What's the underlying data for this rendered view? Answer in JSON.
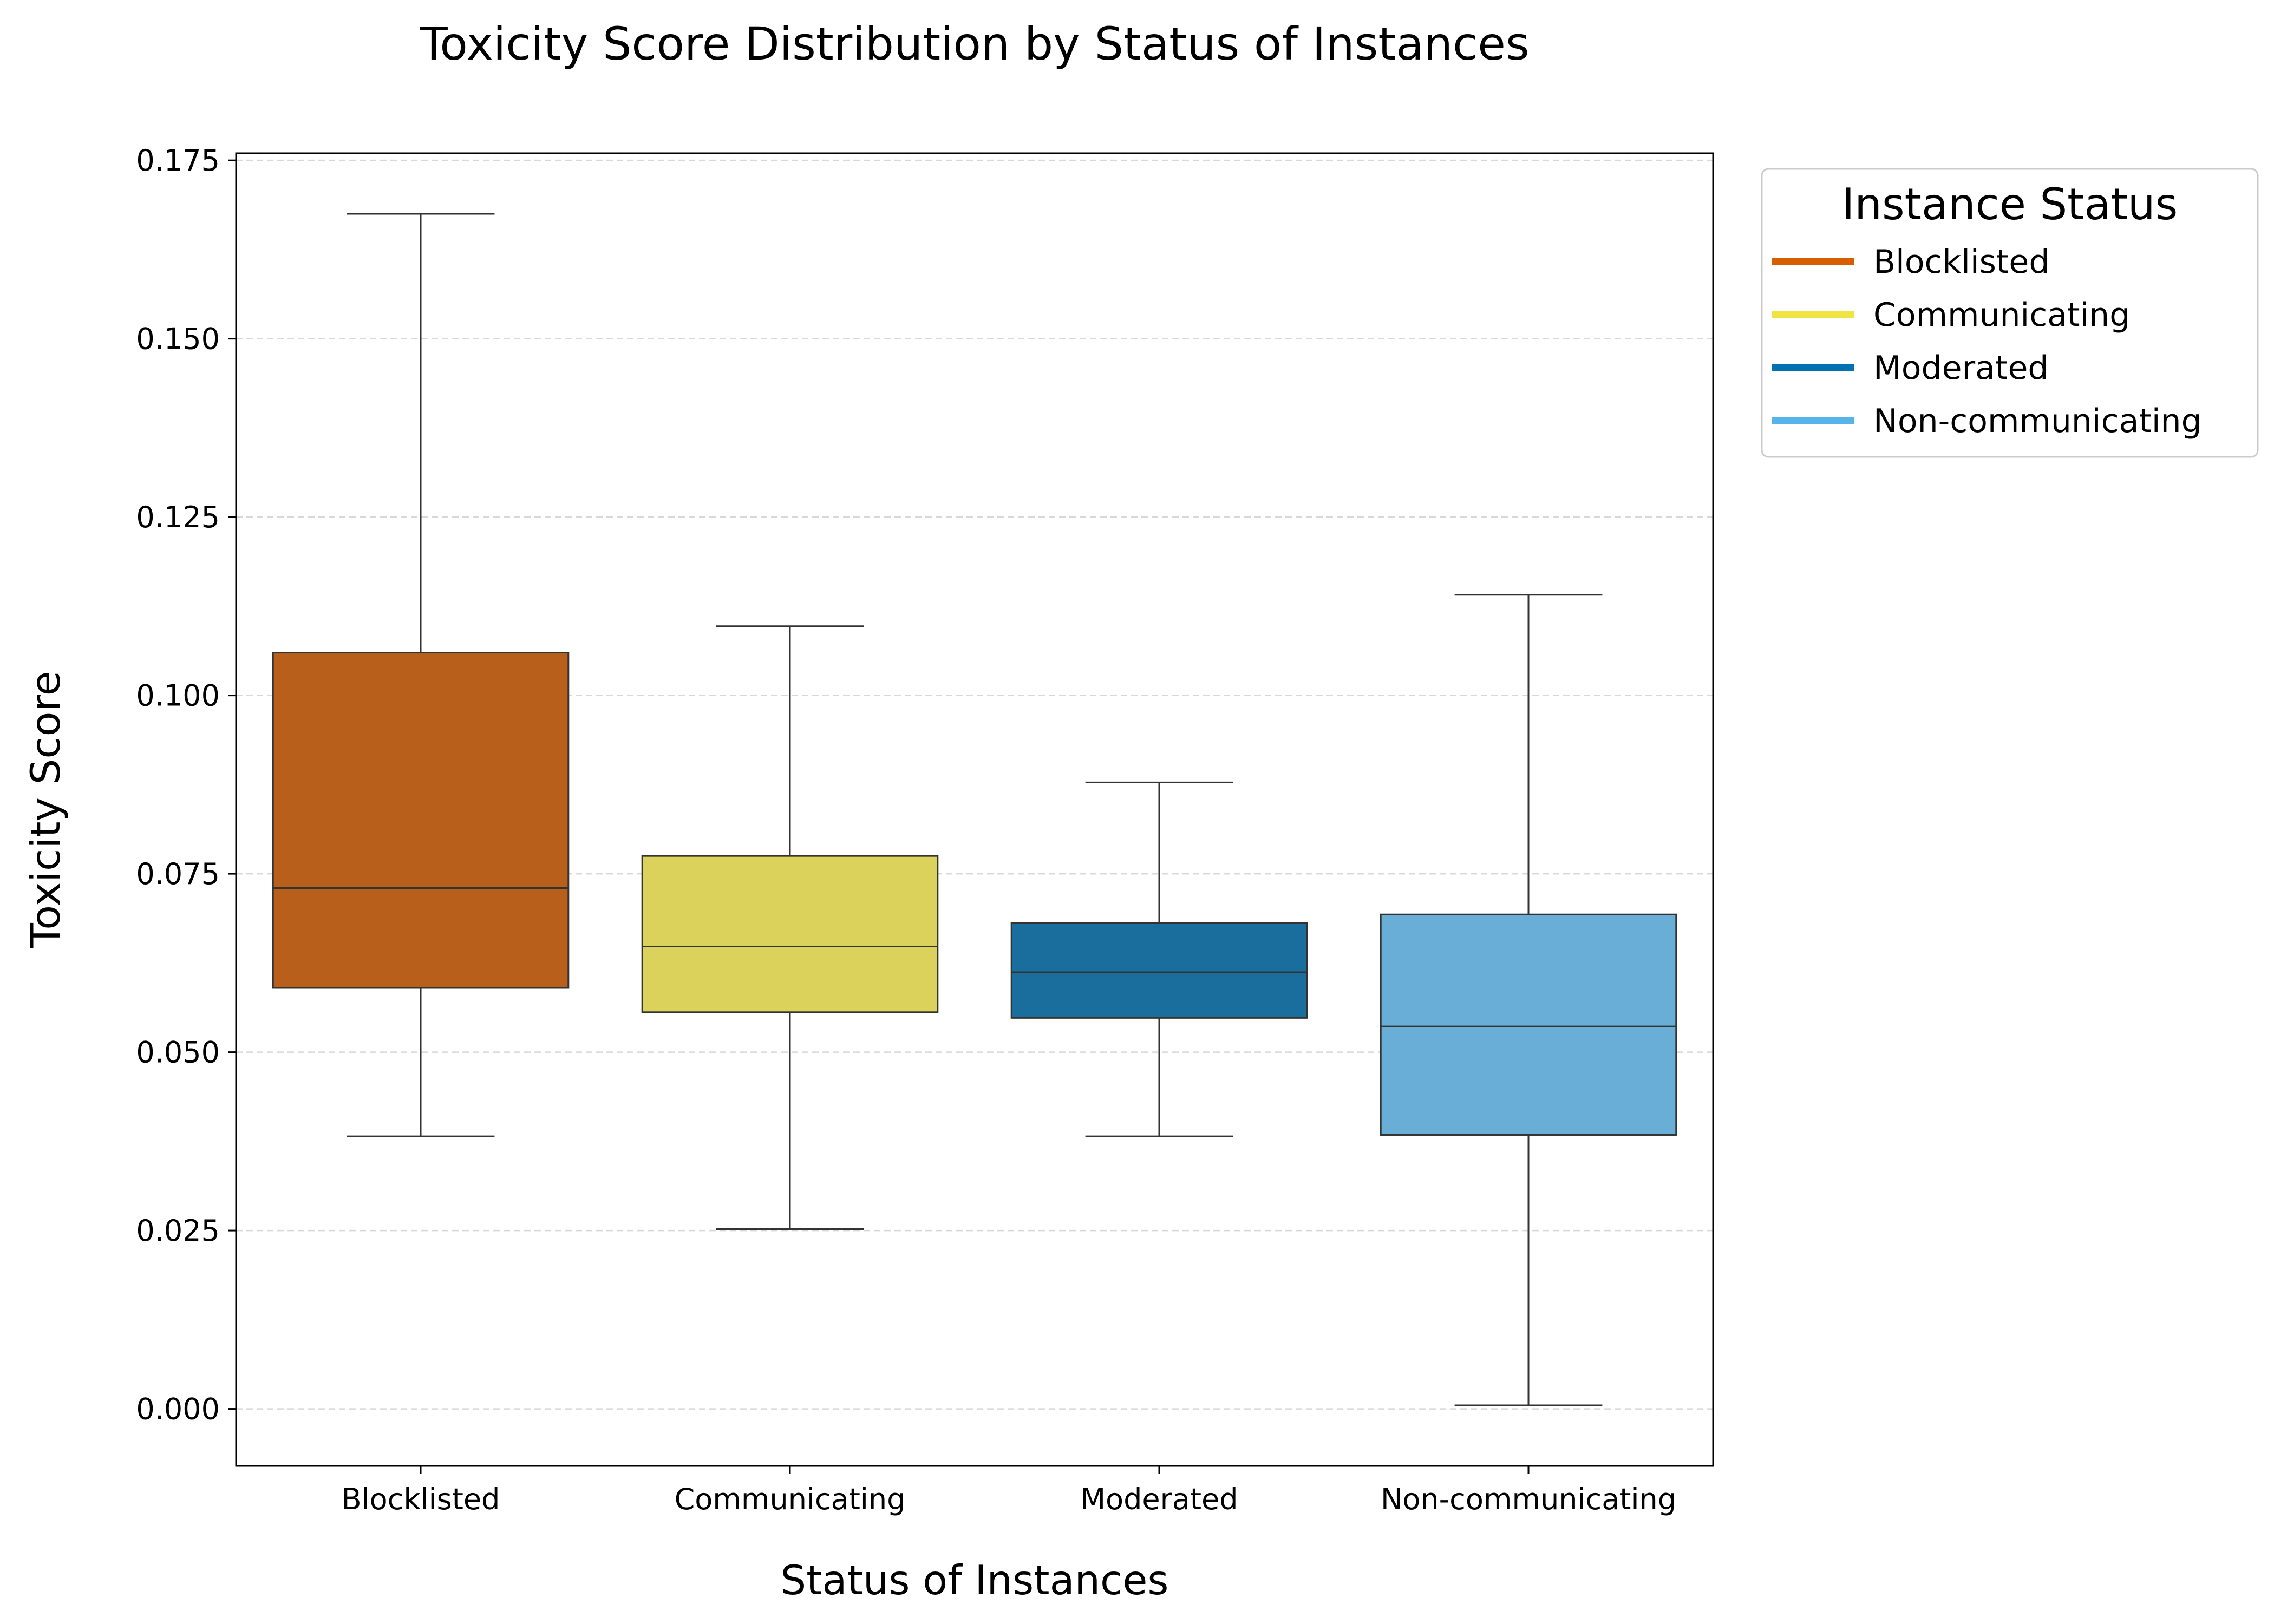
{
  "chart_data": {
    "type": "box",
    "title": "Toxicity Score Distribution by Status of Instances",
    "xlabel": "Status of Instances",
    "ylabel": "Toxicity Score",
    "ylim": [
      -0.008,
      0.176
    ],
    "y_ticks": [
      "0.000",
      "0.025",
      "0.050",
      "0.075",
      "0.100",
      "0.125",
      "0.150",
      "0.175"
    ],
    "y_tick_values": [
      0,
      0.025,
      0.05,
      0.075,
      0.1,
      0.125,
      0.15,
      0.175
    ],
    "grid": "y-dashed",
    "legend": {
      "title": "Instance Status",
      "placement": "outside-top-right",
      "items": [
        {
          "label": "Blocklisted",
          "color": "#D55E00"
        },
        {
          "label": "Communicating",
          "color": "#F0E442"
        },
        {
          "label": "Moderated",
          "color": "#0072B2"
        },
        {
          "label": "Non-communicating",
          "color": "#56B4E9"
        }
      ]
    },
    "categories": [
      "Blocklisted",
      "Communicating",
      "Moderated",
      "Non-communicating"
    ],
    "series": [
      {
        "category": "Blocklisted",
        "fill": "#B85F1C",
        "whisker_low": 0.0382,
        "q1": 0.059,
        "median": 0.073,
        "q3": 0.106,
        "whisker_high": 0.1675
      },
      {
        "category": "Communicating",
        "fill": "#DAD25A",
        "whisker_low": 0.0252,
        "q1": 0.0556,
        "median": 0.0648,
        "q3": 0.0775,
        "whisker_high": 0.1097
      },
      {
        "category": "Moderated",
        "fill": "#1A6E9D",
        "whisker_low": 0.0382,
        "q1": 0.0548,
        "median": 0.0612,
        "q3": 0.0681,
        "whisker_high": 0.0878
      },
      {
        "category": "Non-communicating",
        "fill": "#69AED6",
        "whisker_low": 0.0005,
        "q1": 0.0384,
        "median": 0.0536,
        "q3": 0.0693,
        "whisker_high": 0.1141
      }
    ]
  }
}
